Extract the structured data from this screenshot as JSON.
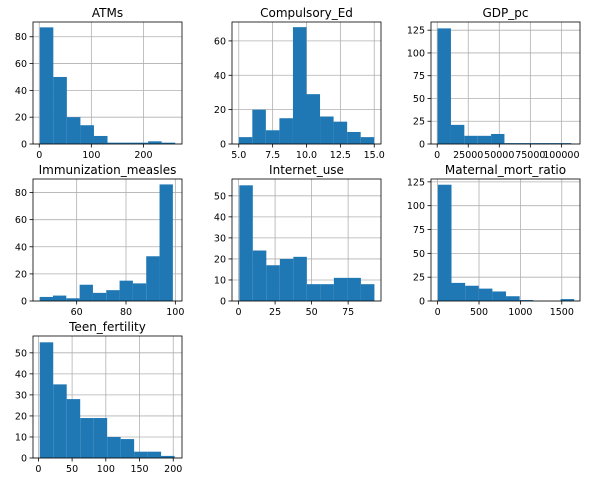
{
  "chart_data": [
    {
      "type": "bar",
      "title": "ATMs",
      "xlim": [
        -12,
        274
      ],
      "ylim": [
        0,
        91
      ],
      "xticks": [
        0,
        100,
        200
      ],
      "yticks": [
        0,
        20,
        40,
        60,
        80
      ],
      "bin_edges": [
        1,
        27,
        53,
        79,
        105,
        131,
        157,
        183,
        209,
        235,
        261
      ],
      "values": [
        87,
        50,
        20,
        14,
        6,
        1,
        1,
        1,
        2,
        1
      ]
    },
    {
      "type": "bar",
      "title": "Compulsory_Ed",
      "xlim": [
        4.5,
        15.5
      ],
      "ylim": [
        0,
        71
      ],
      "xticks": [
        5.0,
        7.5,
        10.0,
        12.5,
        15.0
      ],
      "xtick_labels": [
        "5.0",
        "7.5",
        "10.0",
        "12.5",
        "15.0"
      ],
      "yticks": [
        0,
        20,
        40,
        60
      ],
      "bin_edges": [
        5,
        6,
        7,
        8,
        9,
        10,
        11,
        12,
        13,
        14,
        15
      ],
      "values": [
        4,
        20,
        8,
        15,
        68,
        29,
        16,
        13,
        7,
        4
      ]
    },
    {
      "type": "bar",
      "title": "GDP_pc",
      "xlim": [
        -5000,
        115000
      ],
      "ylim": [
        0,
        134
      ],
      "xticks": [
        0,
        25000,
        50000,
        75000,
        100000
      ],
      "xtick_labels": [
        "0",
        "25000",
        "50000",
        "75000",
        "100000"
      ],
      "yticks": [
        0,
        25,
        50,
        75,
        100,
        125
      ],
      "bin_edges": [
        300,
        11070,
        21840,
        32610,
        43380,
        54150,
        64920,
        75690,
        86460,
        97230,
        108000
      ],
      "values": [
        127,
        21,
        9,
        9,
        11,
        1,
        1,
        1,
        1,
        1
      ]
    },
    {
      "type": "bar",
      "title": "Immunization_measles",
      "xlim": [
        42.3,
        102.7
      ],
      "ylim": [
        0,
        90
      ],
      "xticks": [
        60,
        80,
        100
      ],
      "yticks": [
        0,
        20,
        40,
        60,
        80
      ],
      "bin_edges": [
        45,
        50.4,
        55.8,
        61.2,
        66.6,
        72,
        77.4,
        82.8,
        88.2,
        93.6,
        99
      ],
      "values": [
        3,
        4,
        2,
        12,
        6,
        8,
        15,
        13,
        33,
        86
      ]
    },
    {
      "type": "bar",
      "title": "Internet_use",
      "xlim": [
        -4.5,
        97.5
      ],
      "ylim": [
        0,
        58
      ],
      "xticks": [
        0,
        25,
        50,
        75
      ],
      "yticks": [
        0,
        10,
        20,
        30,
        40,
        50
      ],
      "bin_edges": [
        0.5,
        9.75,
        19,
        28.25,
        37.5,
        46.75,
        56,
        65.25,
        74.5,
        83.75,
        93
      ],
      "values": [
        55,
        24,
        17,
        20,
        21,
        8,
        8,
        11,
        11,
        8
      ]
    },
    {
      "type": "bar",
      "title": "Maternal_mort_ratio",
      "xlim": [
        -80,
        1720
      ],
      "ylim": [
        0,
        128
      ],
      "xticks": [
        0,
        500,
        1000,
        1500
      ],
      "yticks": [
        0,
        25,
        50,
        75,
        100,
        125
      ],
      "bin_edges": [
        3,
        167.7,
        332.4,
        497.1,
        661.8,
        826.5,
        991.2,
        1155.9,
        1320.6,
        1485.3,
        1650
      ],
      "values": [
        122,
        19,
        16,
        13,
        10,
        5,
        1,
        0,
        0,
        2
      ]
    },
    {
      "type": "bar",
      "title": "Teen_fertility",
      "xlim": [
        -8,
        213
      ],
      "ylim": [
        0,
        58
      ],
      "xticks": [
        0,
        50,
        100,
        150,
        200
      ],
      "yticks": [
        0,
        10,
        20,
        30,
        40,
        50
      ],
      "bin_edges": [
        2,
        22,
        42,
        62,
        82,
        102,
        122,
        142,
        162,
        182,
        202
      ],
      "values": [
        55,
        35,
        28,
        19,
        19,
        10,
        9,
        3,
        3,
        1
      ]
    }
  ]
}
